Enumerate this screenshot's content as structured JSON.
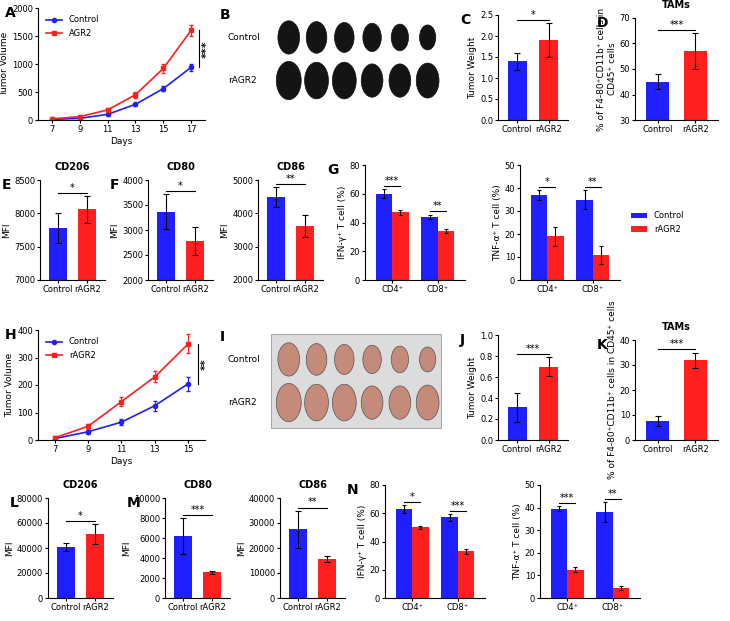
{
  "chart_data": [
    {
      "panel": "A",
      "type": "line",
      "xlabel": "Days",
      "ylabel": "Tumor Volume",
      "x": [
        7,
        9,
        11,
        13,
        15,
        17
      ],
      "xlim": [
        6,
        18
      ],
      "xticks": [
        7,
        9,
        11,
        13,
        15,
        17
      ],
      "ylim": [
        0,
        2000
      ],
      "yticks": [
        0,
        500,
        1000,
        1500,
        2000
      ],
      "legend": "upper left",
      "series": [
        {
          "name": "Control",
          "color": "#1f1fff",
          "marker": "o",
          "values": [
            10,
            30,
            100,
            280,
            560,
            940
          ],
          "errors": [
            5,
            10,
            20,
            30,
            40,
            60
          ]
        },
        {
          "name": "AGR2",
          "color": "#ff1f1f",
          "marker": "s",
          "values": [
            20,
            60,
            180,
            450,
            920,
            1600
          ],
          "errors": [
            10,
            15,
            30,
            50,
            80,
            100
          ]
        }
      ],
      "annotations": [
        "***"
      ]
    },
    {
      "panel": "B",
      "type": "image",
      "rows": [
        "Control",
        "rAGR2"
      ],
      "color": "#141414"
    },
    {
      "panel": "C",
      "type": "bar",
      "ylabel": "Tumor Weight",
      "categories": [
        "Control",
        "rAGR2"
      ],
      "values": [
        1.4,
        1.9
      ],
      "errors": [
        0.2,
        0.4
      ],
      "colors": [
        "#1f1fff",
        "#ff1f1f"
      ],
      "ylim": [
        0,
        2.5
      ],
      "yticks": [
        {
          "value": 0,
          "label": "0.0"
        },
        0.5,
        {
          "value": 1,
          "label": "1.0"
        },
        1.5,
        {
          "value": 2,
          "label": "2.0"
        },
        2.5
      ],
      "annotations": [
        "*"
      ]
    },
    {
      "panel": "D",
      "type": "bar",
      "title": "TAMs",
      "ylabel": "% of F4-80⁺CD11b⁺ cells in CD45⁺ cells",
      "categories": [
        "Control",
        "rAGR2"
      ],
      "values": [
        45,
        57
      ],
      "errors": [
        3,
        7
      ],
      "colors": [
        "#1f1fff",
        "#ff1f1f"
      ],
      "ylim": [
        30,
        70
      ],
      "yticks": [
        30,
        40,
        50,
        60,
        70
      ],
      "annotations": [
        "***"
      ]
    },
    {
      "panel": "E",
      "type": "bar",
      "title": "CD206",
      "ylabel": "MFI",
      "categories": [
        "Control",
        "rAGR2"
      ],
      "values": [
        7780,
        8060
      ],
      "errors": [
        230,
        200
      ],
      "colors": [
        "#1f1fff",
        "#ff1f1f"
      ],
      "ylim": [
        7000,
        8500
      ],
      "yticks": [
        7000,
        7500,
        8000,
        8500
      ],
      "annotations": [
        "*"
      ]
    },
    {
      "panel": "F",
      "type": "bar",
      "title": "CD80",
      "ylabel": "MFI",
      "categories": [
        "Control",
        "rAGR2"
      ],
      "values": [
        3370,
        2790
      ],
      "errors": [
        350,
        280
      ],
      "colors": [
        "#1f1fff",
        "#ff1f1f"
      ],
      "ylim": [
        2000,
        4000
      ],
      "yticks": [
        2000,
        2500,
        3000,
        3500,
        4000
      ],
      "annotations": [
        "*"
      ]
    },
    {
      "type": "bar",
      "title": "CD86",
      "ylabel": "MFI",
      "categories": [
        "Control",
        "rAGR2"
      ],
      "values": [
        4480,
        3630
      ],
      "errors": [
        300,
        330
      ],
      "colors": [
        "#1f1fff",
        "#ff1f1f"
      ],
      "ylim": [
        2000,
        5000
      ],
      "yticks": [
        2000,
        3000,
        4000,
        5000
      ],
      "annotations": [
        "**"
      ]
    },
    {
      "panel": "G",
      "type": "bar",
      "ylabel": "IFN-γ⁺ T cell (%)",
      "categories": [
        "CD4⁺",
        "CD8⁺"
      ],
      "series": [
        {
          "name": "Control",
          "color": "#1f1fff",
          "values": [
            60,
            44
          ],
          "errors": [
            3,
            1.5
          ]
        },
        {
          "name": "rAGR2",
          "color": "#ff1f1f",
          "values": [
            47,
            34
          ],
          "errors": [
            2,
            1.5
          ]
        }
      ],
      "ylim": [
        0,
        80
      ],
      "yticks": [
        0,
        20,
        40,
        60,
        80
      ],
      "annotations": [
        "***",
        "**"
      ]
    },
    {
      "type": "bar",
      "ylabel": "TNF-α⁺ T cell (%)",
      "categories": [
        "CD4⁺",
        "CD8⁺"
      ],
      "series": [
        {
          "name": "Control",
          "color": "#1f1fff",
          "values": [
            37,
            35
          ],
          "errors": [
            2,
            4
          ]
        },
        {
          "name": "rAGR2",
          "color": "#ff1f1f",
          "values": [
            19,
            11
          ],
          "errors": [
            4,
            4
          ]
        }
      ],
      "ylim": [
        0,
        50
      ],
      "yticks": [
        0,
        10,
        20,
        30,
        40,
        50
      ],
      "annotations": [
        "*",
        "**"
      ],
      "legend": "right"
    },
    {
      "panel": "H",
      "type": "line",
      "xlabel": "Days",
      "ylabel": "Tumor Volume",
      "x": [
        7,
        9,
        11,
        13,
        15
      ],
      "xlim": [
        6,
        16
      ],
      "xticks": [
        7,
        9,
        11,
        13,
        15
      ],
      "ylim": [
        0,
        400
      ],
      "yticks": [
        0,
        100,
        200,
        300,
        400
      ],
      "legend": "upper left",
      "series": [
        {
          "name": "Control",
          "color": "#1f1fff",
          "marker": "o",
          "values": [
            5,
            30,
            65,
            125,
            205
          ],
          "errors": [
            3,
            8,
            12,
            18,
            25
          ]
        },
        {
          "name": "rAGR2",
          "color": "#ff1f1f",
          "marker": "s",
          "values": [
            8,
            50,
            140,
            230,
            350
          ],
          "errors": [
            5,
            10,
            15,
            20,
            35
          ]
        }
      ],
      "annotations": [
        "**"
      ]
    },
    {
      "panel": "I",
      "type": "image",
      "rows": [
        "Control",
        "rAGR2"
      ],
      "color": "#c48a7a"
    },
    {
      "panel": "J",
      "type": "bar",
      "ylabel": "Tumor Weight",
      "categories": [
        "Control",
        "rAGR2"
      ],
      "values": [
        0.31,
        0.7
      ],
      "errors": [
        0.14,
        0.09
      ],
      "colors": [
        "#1f1fff",
        "#ff1f1f"
      ],
      "ylim": [
        0,
        1.0
      ],
      "yticks": [
        {
          "value": 0,
          "label": "0.0"
        },
        0.2,
        0.4,
        0.6,
        0.8,
        {
          "value": 1,
          "label": "1.0"
        }
      ],
      "annotations": [
        "***"
      ]
    },
    {
      "panel": "K",
      "type": "bar",
      "title": "TAMs",
      "ylabel": "% of F4-80⁺CD11b⁺ cells in CD45⁺ cells",
      "categories": [
        "Control",
        "rAGR2"
      ],
      "values": [
        7.5,
        32
      ],
      "errors": [
        2,
        3
      ],
      "colors": [
        "#1f1fff",
        "#ff1f1f"
      ],
      "ylim": [
        0,
        40
      ],
      "yticks": [
        0,
        10,
        20,
        30,
        40
      ],
      "annotations": [
        "***"
      ]
    },
    {
      "panel": "L",
      "type": "bar",
      "title": "CD206",
      "ylabel": "MFI",
      "categories": [
        "Control",
        "rAGR2"
      ],
      "values": [
        41000,
        51500
      ],
      "errors": [
        3000,
        8000
      ],
      "colors": [
        "#1f1fff",
        "#ff1f1f"
      ],
      "ylim": [
        0,
        80000
      ],
      "yticks": [
        0,
        20000,
        40000,
        60000,
        80000
      ],
      "annotations": [
        "*"
      ]
    },
    {
      "panel": "M",
      "type": "bar",
      "title": "CD80",
      "ylabel": "MFI",
      "categories": [
        "Control",
        "rAGR2"
      ],
      "values": [
        6200,
        2600
      ],
      "errors": [
        1800,
        150
      ],
      "colors": [
        "#1f1fff",
        "#ff1f1f"
      ],
      "ylim": [
        0,
        10000
      ],
      "yticks": [
        0,
        2000,
        4000,
        6000,
        8000,
        10000
      ],
      "annotations": [
        "***"
      ]
    },
    {
      "type": "bar",
      "title": "CD86",
      "ylabel": "MFI",
      "categories": [
        "Control",
        "rAGR2"
      ],
      "values": [
        27500,
        15800
      ],
      "errors": [
        7500,
        1200
      ],
      "colors": [
        "#1f1fff",
        "#ff1f1f"
      ],
      "ylim": [
        0,
        40000
      ],
      "yticks": [
        0,
        10000,
        20000,
        30000,
        40000
      ],
      "annotations": [
        "**"
      ]
    },
    {
      "panel": "N",
      "type": "bar",
      "ylabel": "IFN-γ⁺ T cell (%)",
      "categories": [
        "CD4⁺",
        "CD8⁺"
      ],
      "series": [
        {
          "name": "Control",
          "color": "#1f1fff",
          "values": [
            63,
            57
          ],
          "errors": [
            2.5,
            2.5
          ]
        },
        {
          "name": "rAGR2",
          "color": "#ff1f1f",
          "values": [
            50,
            33
          ],
          "errors": [
            1,
            2
          ]
        }
      ],
      "ylim": [
        0,
        80
      ],
      "yticks": [
        0,
        20,
        40,
        60,
        80
      ],
      "annotations": [
        "*",
        "***"
      ]
    },
    {
      "type": "bar",
      "ylabel": "TNF-α⁺ T cell (%)",
      "categories": [
        "CD4⁺",
        "CD8⁺"
      ],
      "series": [
        {
          "name": "Control",
          "color": "#1f1fff",
          "values": [
            39.5,
            38
          ],
          "errors": [
            1,
            4.5
          ]
        },
        {
          "name": "rAGR2",
          "color": "#ff1f1f",
          "values": [
            12.5,
            4.5
          ],
          "errors": [
            1,
            1
          ]
        }
      ],
      "ylim": [
        0,
        50
      ],
      "yticks": [
        0,
        10,
        20,
        30,
        40,
        50
      ],
      "annotations": [
        "***",
        "**"
      ]
    }
  ]
}
